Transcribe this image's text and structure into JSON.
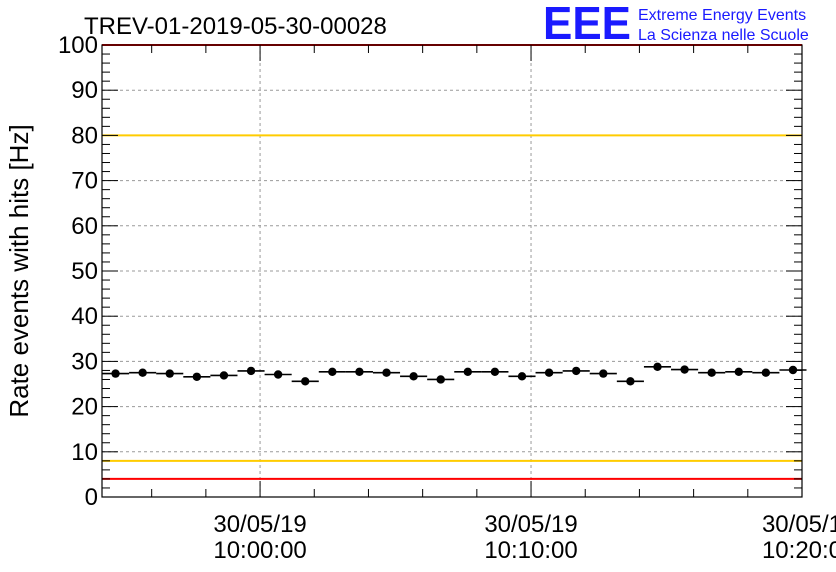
{
  "chart_data": {
    "type": "scatter",
    "title": "TREV-01-2019-05-30-00028",
    "ylabel": "Rate events with hits [Hz]",
    "xlabel": "",
    "ylim": [
      0,
      100
    ],
    "yticks": [
      0,
      10,
      20,
      30,
      40,
      50,
      60,
      70,
      80,
      90,
      100
    ],
    "xlim": [
      "2019-05-30 09:54:10",
      "2019-05-30 10:20:00"
    ],
    "xticks": [
      {
        "time": "2019-05-30 10:00:00",
        "line1": "30/05/19",
        "line2": "10:00:00"
      },
      {
        "time": "2019-05-30 10:10:00",
        "line1": "30/05/19",
        "line2": "10:10:00"
      },
      {
        "time": "2019-05-30 10:20:00",
        "line1": "30/05/1",
        "line2": "10:20:0"
      }
    ],
    "grid": true,
    "bin_width_seconds": 60,
    "series": [
      {
        "x": [
          "2019-05-30 09:54:40",
          "2019-05-30 09:55:40",
          "2019-05-30 09:56:40",
          "2019-05-30 09:57:40",
          "2019-05-30 09:58:40",
          "2019-05-30 09:59:40",
          "2019-05-30 10:00:40",
          "2019-05-30 10:01:40",
          "2019-05-30 10:02:40",
          "2019-05-30 10:03:40",
          "2019-05-30 10:04:40",
          "2019-05-30 10:05:40",
          "2019-05-30 10:06:40",
          "2019-05-30 10:07:40",
          "2019-05-30 10:08:40",
          "2019-05-30 10:09:40",
          "2019-05-30 10:10:40",
          "2019-05-30 10:11:40",
          "2019-05-30 10:12:40",
          "2019-05-30 10:13:40",
          "2019-05-30 10:14:40",
          "2019-05-30 10:15:40",
          "2019-05-30 10:16:40",
          "2019-05-30 10:17:40",
          "2019-05-30 10:18:40",
          "2019-05-30 10:19:40"
        ],
        "values": [
          27.3,
          27.5,
          27.3,
          26.6,
          26.9,
          27.9,
          27.1,
          25.6,
          27.7,
          27.7,
          27.5,
          26.7,
          26.0,
          27.7,
          27.7,
          26.7,
          27.5,
          27.9,
          27.3,
          25.6,
          28.8,
          28.2,
          27.5,
          27.7,
          27.5,
          28.1
        ],
        "color": "#000000"
      }
    ],
    "reference_lines": [
      {
        "value": 100,
        "color": "#ff0000"
      },
      {
        "value": 80,
        "color": "#ffcc00"
      },
      {
        "value": 8,
        "color": "#ffcc00"
      },
      {
        "value": 4,
        "color": "#ff0000"
      }
    ]
  },
  "logo": {
    "mark": "EEE",
    "line1": "Extreme Energy Events",
    "line2": "La Scienza nelle Scuole",
    "color": "#1a1aff"
  }
}
